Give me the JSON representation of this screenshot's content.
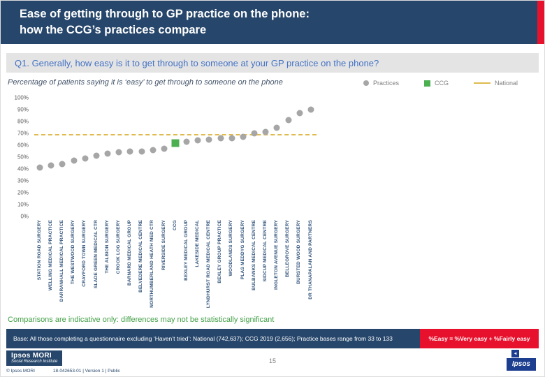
{
  "colors": {
    "navy": "#26466b",
    "red": "#e8112d",
    "question_blue": "#4472c4",
    "bar_gray": "#e4e4e4",
    "practice_gray": "#a6a6a6",
    "ccg_green": "#4caf50",
    "national_gold": "#dfba4d",
    "note_green": "#43a047",
    "title_slate": "#44546a",
    "label_navy": "#33557d",
    "axis_gray": "#595959",
    "ipsos_blue": "#1d3d8f"
  },
  "header": {
    "title_line1": "Ease of getting through to GP practice on the phone:",
    "title_line2": "how the CCG’s practices compare"
  },
  "question": "Q1. Generally, how easy is it to get through to someone at your GP practice on the phone?",
  "chart": {
    "title": "Percentage of patients saying it is ‘easy’ to get through to someone on the phone",
    "legend": [
      {
        "label": "Practices",
        "marker": "dot",
        "color": "#a6a6a6"
      },
      {
        "label": "CCG",
        "marker": "square",
        "color": "#4caf50"
      },
      {
        "label": "National",
        "marker": "dashed-line",
        "color": "#dfba4d"
      }
    ]
  },
  "chart_data": {
    "type": "scatter",
    "title": "Percentage of patients saying it is ‘easy’ to get through to someone on the phone",
    "xlabel": "",
    "ylabel": "",
    "ylim": [
      0,
      100
    ],
    "ytick_step": 10,
    "ytick_suffix": "%",
    "grid": false,
    "legend_position": "top-right",
    "national_line_value": 68,
    "points": [
      {
        "label": "STATION ROAD SURGERY",
        "value": 41,
        "series": "practices"
      },
      {
        "label": "WELLING MEDICAL PRACTICE",
        "value": 43,
        "series": "practices"
      },
      {
        "label": "DARRANHALL MEDICAL PRACTICE",
        "value": 44,
        "series": "practices"
      },
      {
        "label": "THE WESTWOOD SURGERY",
        "value": 47,
        "series": "practices"
      },
      {
        "label": "CRAYFORD TOWN SURGERY",
        "value": 49,
        "series": "practices"
      },
      {
        "label": "SLADE GREEN MEDICAL CTR",
        "value": 51,
        "series": "practices"
      },
      {
        "label": "THE ALBION SURGERY",
        "value": 53,
        "series": "practices"
      },
      {
        "label": "CROOK LOG SURGERY",
        "value": 54,
        "series": "practices"
      },
      {
        "label": "BARNARD MEDICAL GROUP",
        "value": 55,
        "series": "practices"
      },
      {
        "label": "BELVEDERE MEDICAL CENTRE",
        "value": 55,
        "series": "practices"
      },
      {
        "label": "NORTHUMBERLAND HEATH MED CTR",
        "value": 56,
        "series": "practices"
      },
      {
        "label": "RIVERSIDE SURGERY",
        "value": 57,
        "series": "practices"
      },
      {
        "label": "CCG",
        "value": 62,
        "series": "ccg"
      },
      {
        "label": "BEXLEY MEDICAL GROUP",
        "value": 63,
        "series": "practices"
      },
      {
        "label": "LAKESIDE MEDICAL",
        "value": 64,
        "series": "practices"
      },
      {
        "label": "LYNDHURST ROAD MEDICAL CENTRE",
        "value": 65,
        "series": "practices"
      },
      {
        "label": "BEXLEY GROUP PRACTICE",
        "value": 66,
        "series": "practices"
      },
      {
        "label": "WOODLANDS SURGERY",
        "value": 66,
        "series": "practices"
      },
      {
        "label": "PLAS MEDDYG SURGERY",
        "value": 67,
        "series": "practices"
      },
      {
        "label": "BULBANKS MEDICAL CENTRE",
        "value": 70,
        "series": "practices"
      },
      {
        "label": "SIDCUP MEDICAL CENTRE",
        "value": 71,
        "series": "practices"
      },
      {
        "label": "INGLETON AVENUE SURGERY",
        "value": 75,
        "series": "practices"
      },
      {
        "label": "BELLEGROVE SURGERY",
        "value": 81,
        "series": "practices"
      },
      {
        "label": "BURSTED WOOD SURGERY",
        "value": 87,
        "series": "practices"
      },
      {
        "label": "DR THANAPALAN AND PARTNERS",
        "value": 90,
        "series": "practices"
      }
    ]
  },
  "note": "Comparisons are indicative only: differences may not be statistically significant",
  "footer_band": {
    "base": "Base: All those completing a questionnaire excluding ‘Haven’t tried’: National (742,637); CCG 2019 (2,656); Practice bases range from 33 to 133",
    "easy_note": "%Easy = %Very easy + %Fairly easy"
  },
  "footer": {
    "logo_line1": "Ipsos MORI",
    "logo_line2": "Social Research Institute",
    "copyright": "© Ipsos MORI",
    "doc_ref": "18-042653-01 | Version 1 | Public",
    "page_number": "15",
    "brand": "Ipsos"
  }
}
